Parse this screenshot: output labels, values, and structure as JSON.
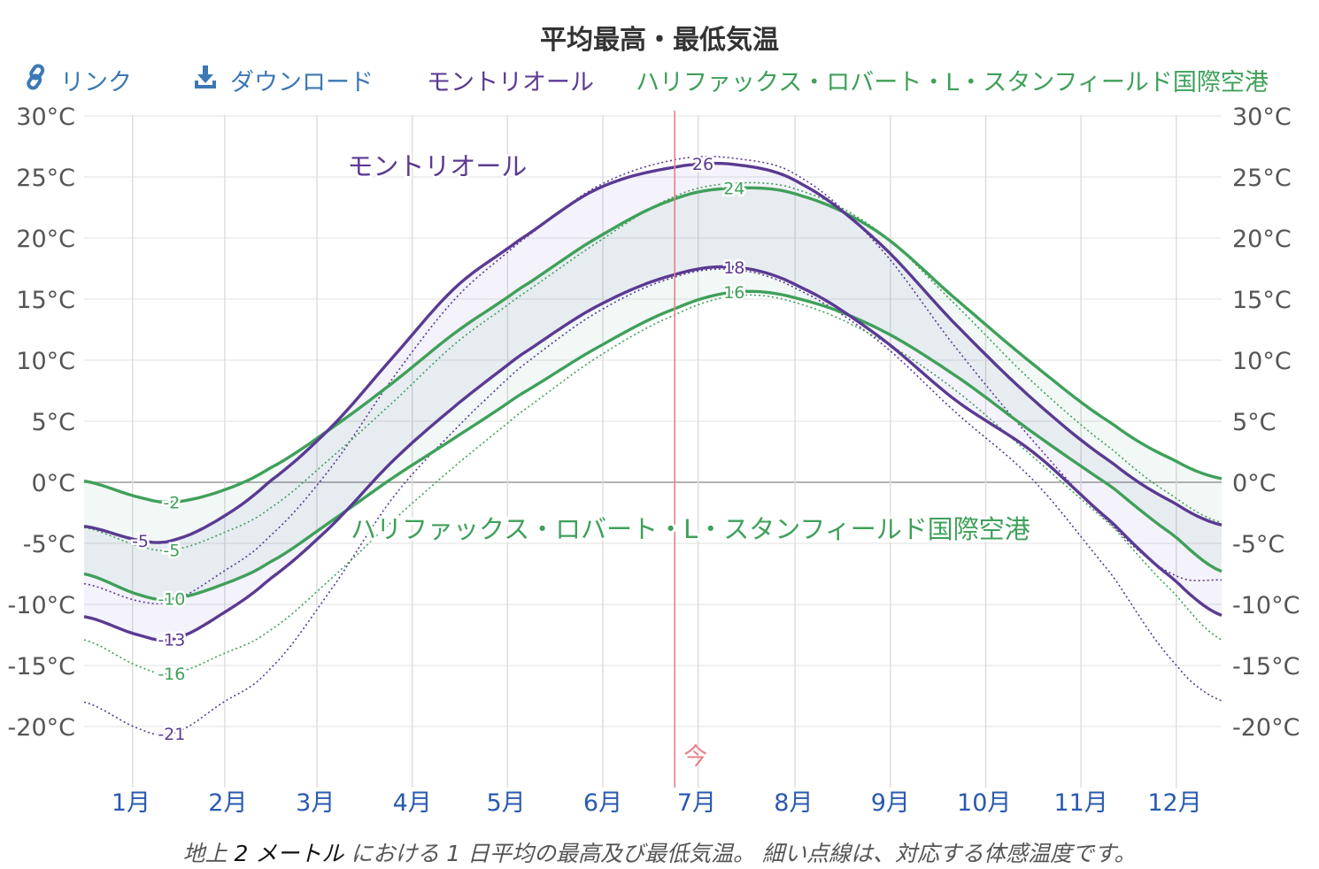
{
  "title": "平均最高・最低気温",
  "toolbar": {
    "link_label": "リンク",
    "download_label": "ダウンロード",
    "link_icon": "link-icon",
    "download_icon": "download-icon"
  },
  "legend": {
    "series_a": "モントリオール",
    "series_b": "ハリファックス・ロバート・L・スタンフィールド国際空港"
  },
  "today_label": "今",
  "caption": {
    "pre": "地上 ",
    "height": "2 メートル",
    "post": " における 1 日平均の最高及び最低気温。 細い点線は、対応する体感温度です。"
  },
  "colors": {
    "montreal": "#5a3a92",
    "halifax": "#3fa05a",
    "today_line": "#e8808a",
    "month_label": "#2a5ab0"
  },
  "chart_data": {
    "type": "line",
    "x_unit": "day_of_year",
    "x_range": [
      1,
      365
    ],
    "months": [
      "1月",
      "2月",
      "3月",
      "4月",
      "5月",
      "6月",
      "7月",
      "8月",
      "9月",
      "10月",
      "11月",
      "12月"
    ],
    "y_ticks": [
      "30°C",
      "25°C",
      "20°C",
      "15°C",
      "10°C",
      "5°C",
      "0°C",
      "-5°C",
      "-10°C",
      "-15°C",
      "-20°C"
    ],
    "ylim": [
      -25,
      30
    ],
    "today_day": 190,
    "series": [
      {
        "key": "montreal_high",
        "x": [
          1,
          20,
          30,
          45,
          60,
          80,
          100,
          120,
          140,
          165,
          190,
          210,
          230,
          255,
          280,
          305,
          330,
          350,
          365
        ],
        "values": [
          -3.6,
          -4.8,
          -4.7,
          -2.9,
          0.0,
          4.5,
          10.3,
          16.0,
          19.8,
          24.0,
          25.8,
          26.0,
          24.5,
          19.7,
          12.9,
          6.7,
          1.6,
          -1.7,
          -3.5
        ]
      },
      {
        "key": "montreal_low",
        "x": [
          1,
          20,
          30,
          45,
          60,
          80,
          100,
          120,
          140,
          165,
          190,
          210,
          230,
          255,
          280,
          305,
          330,
          350,
          365
        ],
        "values": [
          -11.0,
          -12.6,
          -12.8,
          -10.8,
          -8.0,
          -3.6,
          1.8,
          6.3,
          10.3,
          14.4,
          17.0,
          17.6,
          16.0,
          12.0,
          6.7,
          2.4,
          -3.3,
          -8.0,
          -10.9
        ]
      },
      {
        "key": "halifax_high",
        "x": [
          1,
          20,
          30,
          45,
          60,
          80,
          100,
          120,
          140,
          165,
          190,
          210,
          230,
          255,
          280,
          305,
          330,
          350,
          365
        ],
        "values": [
          0.1,
          -1.3,
          -1.6,
          -0.7,
          1.1,
          4.4,
          8.2,
          12.3,
          15.8,
          20.0,
          23.2,
          24.1,
          23.5,
          20.5,
          15.0,
          9.6,
          4.8,
          1.8,
          0.3
        ]
      },
      {
        "key": "halifax_low",
        "x": [
          1,
          20,
          30,
          45,
          60,
          80,
          100,
          120,
          140,
          165,
          190,
          210,
          230,
          255,
          280,
          305,
          330,
          350,
          365
        ],
        "values": [
          -7.5,
          -9.3,
          -9.5,
          -8.4,
          -6.6,
          -3.2,
          0.4,
          3.7,
          7.1,
          11.0,
          14.2,
          15.6,
          15.0,
          12.6,
          8.7,
          4.0,
          -0.4,
          -4.4,
          -7.3
        ]
      },
      {
        "key": "montreal_high_feels",
        "x": [
          1,
          20,
          30,
          45,
          60,
          80,
          100,
          120,
          140,
          165,
          190,
          210,
          230,
          255,
          280,
          305,
          330,
          350,
          365
        ],
        "values": [
          -8.3,
          -9.8,
          -9.6,
          -7.4,
          -4.5,
          1.2,
          8.6,
          15.1,
          19.6,
          24.2,
          26.4,
          26.5,
          25.0,
          19.4,
          11.0,
          3.3,
          -3.5,
          -7.6,
          -8.0
        ]
      },
      {
        "key": "montreal_low_feels",
        "x": [
          1,
          20,
          30,
          45,
          60,
          80,
          100,
          120,
          140,
          165,
          190,
          210,
          230,
          255,
          280,
          305,
          330,
          350,
          365
        ],
        "values": [
          -18.0,
          -20.3,
          -20.5,
          -18.1,
          -15.4,
          -8.8,
          -1.2,
          4.4,
          9.3,
          13.9,
          16.8,
          17.4,
          15.7,
          11.6,
          5.7,
          0.1,
          -7.6,
          -14.8,
          -17.9
        ]
      },
      {
        "key": "halifax_high_feels",
        "x": [
          1,
          20,
          30,
          45,
          60,
          80,
          100,
          120,
          140,
          165,
          190,
          210,
          230,
          255,
          280,
          305,
          330,
          350,
          365
        ],
        "values": [
          -3.7,
          -5.3,
          -5.5,
          -4.2,
          -2.2,
          2.0,
          6.6,
          11.4,
          15.2,
          19.6,
          23.4,
          24.5,
          23.9,
          20.6,
          14.5,
          8.1,
          2.7,
          -1.2,
          -3.3
        ]
      },
      {
        "key": "halifax_low_feels",
        "x": [
          1,
          20,
          30,
          45,
          60,
          80,
          100,
          120,
          140,
          165,
          190,
          210,
          230,
          255,
          280,
          305,
          330,
          350,
          365
        ],
        "values": [
          -12.9,
          -15.2,
          -15.6,
          -14.1,
          -12.2,
          -7.9,
          -3.1,
          1.4,
          5.6,
          10.2,
          13.7,
          15.3,
          14.6,
          11.8,
          7.5,
          2.0,
          -3.6,
          -9.1,
          -12.9
        ]
      }
    ],
    "data_labels": [
      {
        "series": "montreal_high",
        "x": 20,
        "text": "-5"
      },
      {
        "series": "montreal_low",
        "x": 30,
        "text": "-13"
      },
      {
        "series": "montreal_low_feels",
        "x": 30,
        "text": "-21"
      },
      {
        "series": "halifax_high",
        "x": 30,
        "text": "-2"
      },
      {
        "series": "halifax_high_feels",
        "x": 30,
        "text": "-5"
      },
      {
        "series": "halifax_low",
        "x": 30,
        "text": "-10"
      },
      {
        "series": "halifax_low_feels",
        "x": 30,
        "text": "-16"
      },
      {
        "series": "montreal_high",
        "x": 200,
        "text": "26"
      },
      {
        "series": "halifax_high",
        "x": 210,
        "text": "24"
      },
      {
        "series": "montreal_low",
        "x": 210,
        "text": "18"
      },
      {
        "series": "halifax_low",
        "x": 210,
        "text": "16"
      }
    ],
    "annotations": [
      {
        "text": "モントリオール",
        "color": "#5a3a92"
      },
      {
        "text": "ハリファックス・ロバート・L・スタンフィールド国際空港",
        "color": "#3fa05a"
      }
    ]
  }
}
